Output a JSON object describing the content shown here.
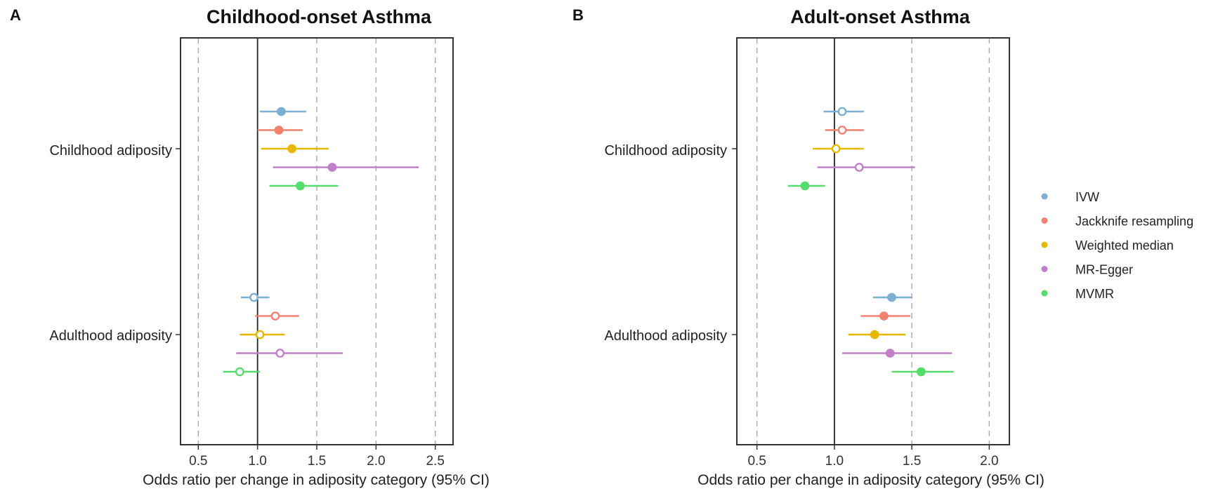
{
  "chart_data": [
    {
      "type": "forest",
      "panel": "A",
      "title": "Childhood-onset Asthma",
      "xlabel": "Odds ratio per change in adiposity category (95% CI)",
      "xlim": [
        0.35,
        2.65
      ],
      "xticks": [
        0.5,
        1.0,
        1.5,
        2.0,
        2.5
      ],
      "xtick_labels": [
        "0.5",
        "1.0",
        "1.5",
        "2.0",
        "2.5"
      ],
      "reference_line": 1.0,
      "grid": "dashed vertical at ticks",
      "categories": [
        "Childhood adiposity",
        "Adulthood adiposity"
      ],
      "series": [
        {
          "name": "IVW",
          "color": "#7bafd4",
          "values": [
            {
              "or": 1.2,
              "lo": 1.02,
              "hi": 1.41,
              "significant": true
            },
            {
              "or": 0.97,
              "lo": 0.86,
              "hi": 1.1,
              "significant": false
            }
          ]
        },
        {
          "name": "Jackknife resampling",
          "color": "#f4806f",
          "values": [
            {
              "or": 1.18,
              "lo": 1.0,
              "hi": 1.38,
              "significant": true
            },
            {
              "or": 1.15,
              "lo": 0.98,
              "hi": 1.35,
              "significant": false
            }
          ]
        },
        {
          "name": "Weighted median",
          "color": "#e6b800",
          "values": [
            {
              "or": 1.29,
              "lo": 1.03,
              "hi": 1.6,
              "significant": true
            },
            {
              "or": 1.02,
              "lo": 0.85,
              "hi": 1.23,
              "significant": false
            }
          ]
        },
        {
          "name": "MR-Egger",
          "color": "#c27fc9",
          "values": [
            {
              "or": 1.63,
              "lo": 1.13,
              "hi": 2.36,
              "significant": true
            },
            {
              "or": 1.19,
              "lo": 0.82,
              "hi": 1.72,
              "significant": false
            }
          ]
        },
        {
          "name": "MVMR",
          "color": "#55dd6c",
          "values": [
            {
              "or": 1.36,
              "lo": 1.1,
              "hi": 1.68,
              "significant": true
            },
            {
              "or": 0.85,
              "lo": 0.71,
              "hi": 1.02,
              "significant": false
            }
          ]
        }
      ]
    },
    {
      "type": "forest",
      "panel": "B",
      "title": "Adult-onset Asthma",
      "xlabel": "Odds ratio per change in adiposity category (95% CI)",
      "xlim": [
        0.37,
        2.13
      ],
      "xticks": [
        0.5,
        1.0,
        1.5,
        2.0
      ],
      "xtick_labels": [
        "0.5",
        "1.0",
        "1.5",
        "2.0"
      ],
      "reference_line": 1.0,
      "grid": "dashed vertical at ticks",
      "categories": [
        "Childhood adiposity",
        "Adulthood adiposity"
      ],
      "series": [
        {
          "name": "IVW",
          "color": "#7bafd4",
          "values": [
            {
              "or": 1.05,
              "lo": 0.93,
              "hi": 1.19,
              "significant": false
            },
            {
              "or": 1.37,
              "lo": 1.25,
              "hi": 1.5,
              "significant": true
            }
          ]
        },
        {
          "name": "Jackknife resampling",
          "color": "#f4806f",
          "values": [
            {
              "or": 1.05,
              "lo": 0.94,
              "hi": 1.19,
              "significant": false
            },
            {
              "or": 1.32,
              "lo": 1.17,
              "hi": 1.49,
              "significant": true
            }
          ]
        },
        {
          "name": "Weighted median",
          "color": "#e6b800",
          "values": [
            {
              "or": 1.01,
              "lo": 0.86,
              "hi": 1.19,
              "significant": false
            },
            {
              "or": 1.26,
              "lo": 1.09,
              "hi": 1.46,
              "significant": true
            }
          ]
        },
        {
          "name": "MR-Egger",
          "color": "#c27fc9",
          "values": [
            {
              "or": 1.16,
              "lo": 0.89,
              "hi": 1.52,
              "significant": false
            },
            {
              "or": 1.36,
              "lo": 1.05,
              "hi": 1.76,
              "significant": true
            }
          ]
        },
        {
          "name": "MVMR",
          "color": "#55dd6c",
          "values": [
            {
              "or": 0.81,
              "lo": 0.7,
              "hi": 0.94,
              "significant": true
            },
            {
              "or": 1.56,
              "lo": 1.37,
              "hi": 1.77,
              "significant": true
            }
          ]
        }
      ]
    }
  ],
  "legend": {
    "placement": "right",
    "items": [
      "IVW",
      "Jackknife resampling",
      "Weighted median",
      "MR-Egger",
      "MVMR"
    ]
  }
}
